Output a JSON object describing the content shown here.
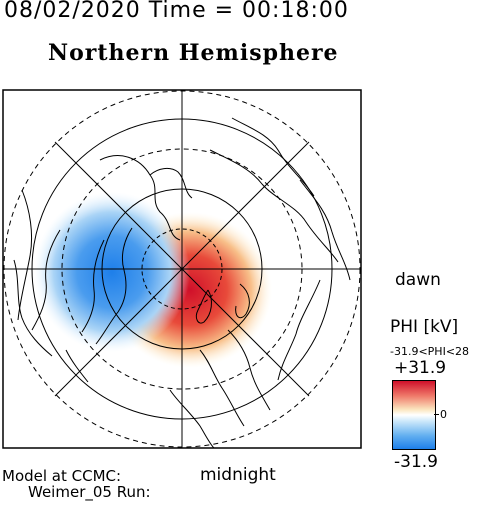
{
  "header": {
    "datetime": "08/02/2020 Time = 00:18:00",
    "hemisphere": "Northern Hemisphere"
  },
  "labels": {
    "dawn": "dawn",
    "midnight": "midnight",
    "model_line1": "Model at CCMC:",
    "model_line2": "Weimer_05 Run:"
  },
  "colorbar": {
    "title": "PHI [kV]",
    "range_text": "-31.9<PHI<28",
    "max_label": "+31.9",
    "zero_label": "0",
    "min_label": "-31.9",
    "colors": {
      "positive": "#d0102a",
      "neutral": "#ffffff",
      "negative": "#1e7fea"
    }
  },
  "map": {
    "potential_max_kV": 31.9,
    "potential_min_kV": -31.9
  }
}
